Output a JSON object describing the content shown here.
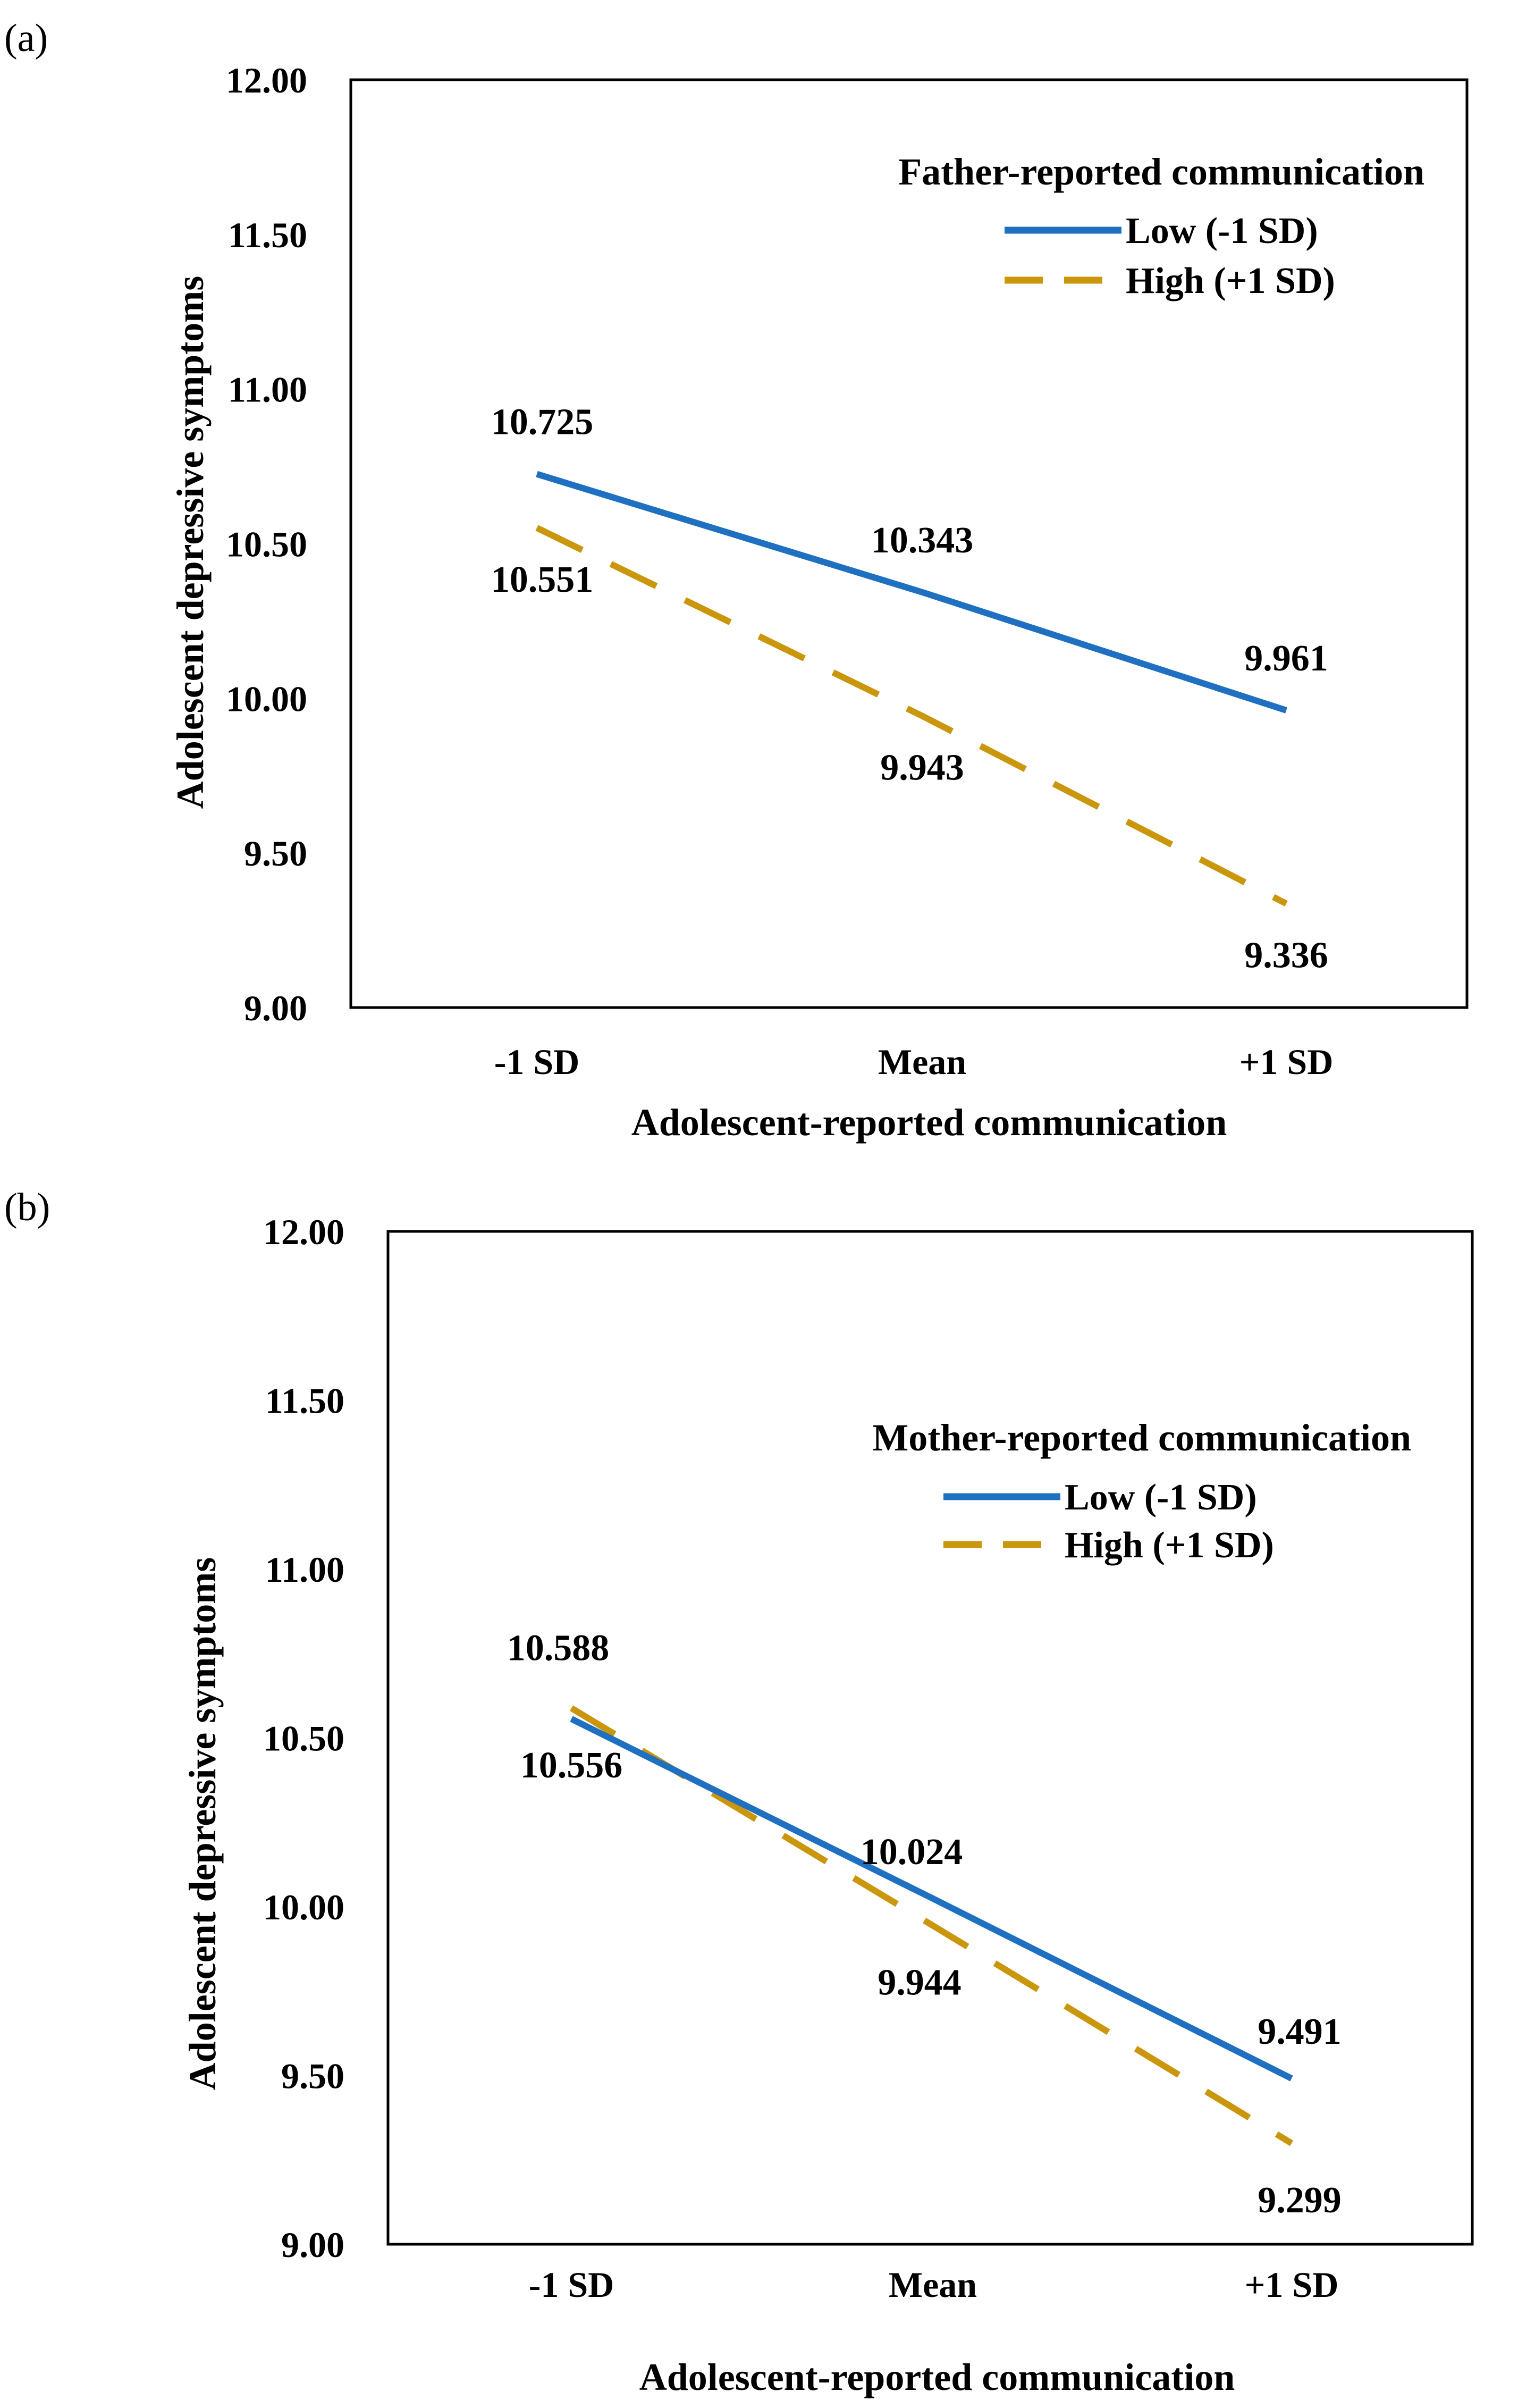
{
  "panels": [
    {
      "panel_label": "(a)",
      "legend_title": "Father-reported communication"
    },
    {
      "panel_label": "(b)",
      "legend_title": "Mother-reported communication"
    }
  ],
  "colors": {
    "low": "#1F70C1",
    "high": "#C9960C"
  },
  "chart_data": [
    {
      "type": "line",
      "title": "",
      "categories": [
        "-1 SD",
        "Mean",
        "+1 SD"
      ],
      "xlabel": "Adolescent-reported communication",
      "ylabel": "Adolescent depressive symptoms",
      "ylim": [
        9.0,
        12.0
      ],
      "yticks": [
        "12.00",
        "11.50",
        "11.00",
        "10.50",
        "10.00",
        "9.50",
        "9.00"
      ],
      "grid": false,
      "legend_position": "top-right",
      "series": [
        {
          "name": "Low (-1 SD)",
          "style": "solid",
          "values": [
            10.725,
            10.343,
            9.961
          ],
          "labels": [
            "10.725",
            "10.343",
            "9.961"
          ]
        },
        {
          "name": "High (+1 SD)",
          "style": "dashed",
          "values": [
            10.551,
            9.943,
            9.336
          ],
          "labels": [
            "10.551",
            "9.943",
            "9.336"
          ]
        }
      ]
    },
    {
      "type": "line",
      "title": "",
      "categories": [
        "-1 SD",
        "Mean",
        "+1 SD"
      ],
      "xlabel": "Adolescent-reported communication",
      "ylabel": "Adolescent depressive symptoms",
      "ylim": [
        9.0,
        12.0
      ],
      "yticks": [
        "12.00",
        "11.50",
        "11.00",
        "10.50",
        "10.00",
        "9.50",
        "9.00"
      ],
      "grid": false,
      "legend_position": "top-right",
      "series": [
        {
          "name": "Low (-1 SD)",
          "style": "solid",
          "values": [
            10.556,
            10.024,
            9.491
          ],
          "labels": [
            "10.556",
            "10.024",
            "9.491"
          ]
        },
        {
          "name": "High (+1 SD)",
          "style": "dashed",
          "values": [
            10.588,
            9.944,
            9.299
          ],
          "labels": [
            "10.588",
            "9.944",
            "9.299"
          ]
        }
      ]
    }
  ]
}
